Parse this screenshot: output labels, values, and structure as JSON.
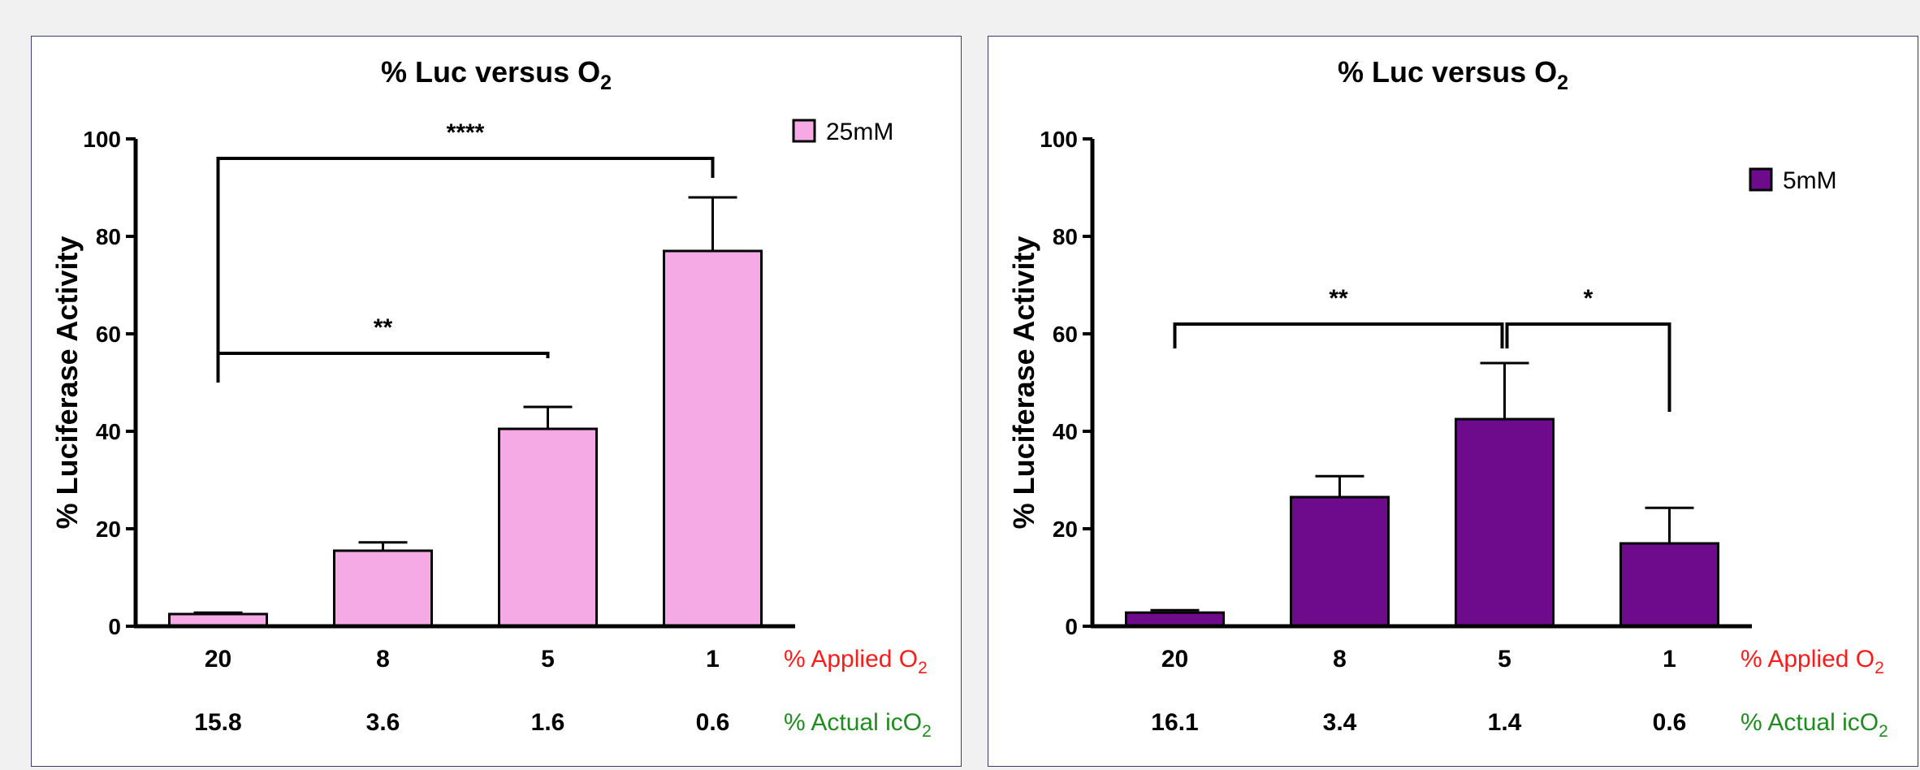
{
  "chart_data": [
    {
      "type": "bar",
      "title": "% Luc versus O",
      "title_sub": "2",
      "ylabel": "% Luciferase Activity",
      "ylim": [
        0,
        100
      ],
      "yticks": [
        "0",
        "20",
        "40",
        "60",
        "80",
        "100"
      ],
      "categories": [
        "20",
        "8",
        "5",
        "1"
      ],
      "secondary_categories": [
        "15.8",
        "3.6",
        "1.6",
        "0.6"
      ],
      "row1_label": "% Applied O",
      "row1_sub": "2",
      "row2_label": "% Actual icO",
      "row2_sub": "2",
      "row1_color": "#ff1a1a",
      "row2_color": "#1e8c1e",
      "series": [
        {
          "name": "25mM",
          "color": "#f5aae6",
          "values": [
            2.5,
            15.5,
            40.5,
            77
          ],
          "errors": [
            0.3,
            1.7,
            4.5,
            11
          ]
        }
      ],
      "legend_position": "top-right",
      "significance": [
        {
          "label": "**",
          "from": 0,
          "to": 2,
          "y": 56,
          "left_drop_to": 50,
          "right_drop_to": 55
        },
        {
          "label": "****",
          "from": 0,
          "to": 3,
          "y": 96,
          "left_drop_to": 50,
          "right_drop_to": 92
        }
      ]
    },
    {
      "type": "bar",
      "title": "% Luc versus O",
      "title_sub": "2",
      "ylabel": "% Luciferase Activity",
      "ylim": [
        0,
        100
      ],
      "yticks": [
        "0",
        "20",
        "40",
        "60",
        "80",
        "100"
      ],
      "categories": [
        "20",
        "8",
        "5",
        "1"
      ],
      "secondary_categories": [
        "16.1",
        "3.4",
        "1.4",
        "0.6"
      ],
      "row1_label": "% Applied O",
      "row1_sub": "2",
      "row2_label": "% Actual icO",
      "row2_sub": "2",
      "row1_color": "#ff1a1a",
      "row2_color": "#1e8c1e",
      "series": [
        {
          "name": "5mM",
          "color": "#6e0a8c",
          "values": [
            2.8,
            26.5,
            42.5,
            17
          ],
          "errors": [
            0.5,
            4.3,
            11.5,
            7.3
          ]
        }
      ],
      "legend_position": "top-right",
      "significance": [
        {
          "label": "**",
          "from": 0,
          "to": 2,
          "y": 62,
          "left_drop_to": 57,
          "right_drop_to": 57
        },
        {
          "label": "*",
          "from": 2,
          "to": 3,
          "y": 62,
          "left_drop_to": 57,
          "right_drop_to": 44
        }
      ]
    }
  ]
}
